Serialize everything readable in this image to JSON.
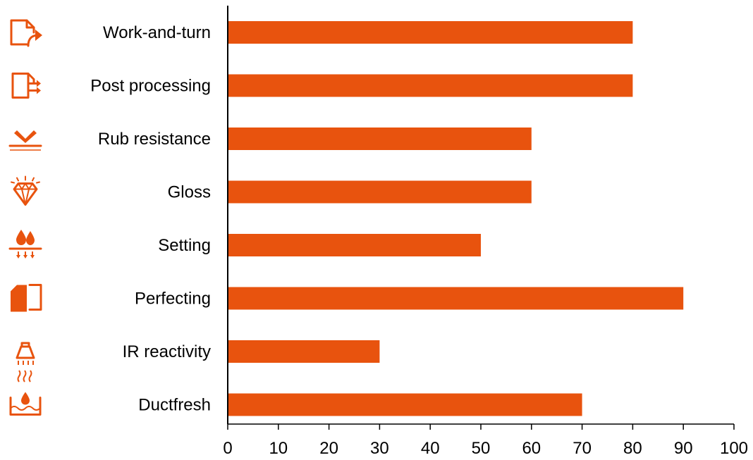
{
  "chart_data": {
    "type": "bar",
    "orientation": "horizontal",
    "categories": [
      "Work-and-turn",
      "Post processing",
      "Rub resistance",
      "Gloss",
      "Setting",
      "Perfecting",
      "IR reactivity",
      "Ductfresh"
    ],
    "values": [
      80,
      80,
      60,
      60,
      50,
      90,
      30,
      70
    ],
    "category_icons": [
      "work-and-turn-icon",
      "post-processing-icon",
      "rub-resistance-icon",
      "gloss-icon",
      "setting-icon",
      "perfecting-icon",
      "ir-reactivity-icon",
      "ductfresh-icon"
    ],
    "xlim": [
      0,
      100
    ],
    "xticks": [
      0,
      10,
      20,
      30,
      40,
      50,
      60,
      70,
      80,
      90,
      100
    ],
    "title": "",
    "xlabel": "",
    "ylabel": "",
    "grid": false,
    "legend": "none",
    "colors": {
      "bar": "#E8530E",
      "icon": "#E8530E",
      "axis": "#000000",
      "text": "#000000"
    }
  }
}
